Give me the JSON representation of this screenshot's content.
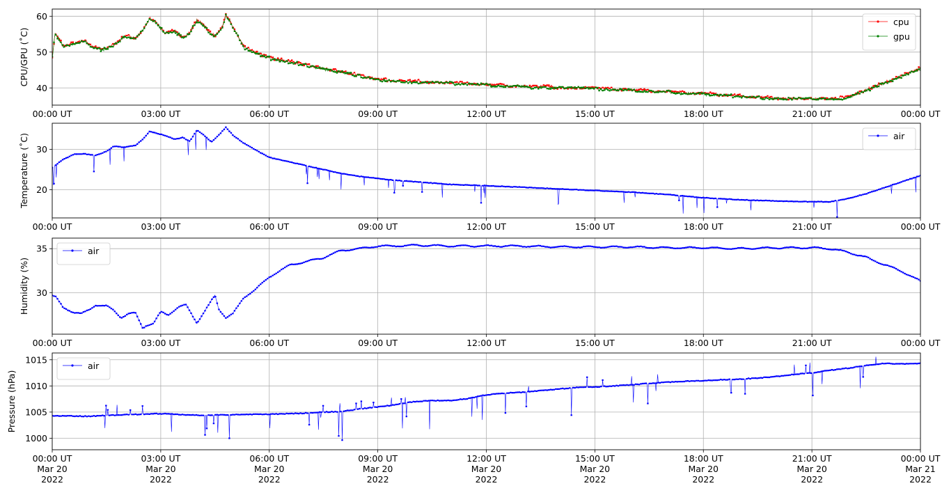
{
  "chart_data": [
    {
      "type": "line",
      "ylabel": "CPU/GPU (˚C)",
      "ylim": [
        35.2,
        62.0
      ],
      "yticks": [
        40,
        50,
        60
      ],
      "xlim_hours": [
        0,
        24
      ],
      "x_tick_labels": [
        "00:00 UT",
        "03:00 UT",
        "06:00 UT",
        "09:00 UT",
        "12:00 UT",
        "15:00 UT",
        "18:00 UT",
        "21:00 UT",
        "00:00 UT"
      ],
      "grid": true,
      "legend": "upper-right",
      "series": [
        {
          "name": "cpu",
          "color": "#ff0000",
          "x": [
            0,
            0.08,
            0.3,
            0.6,
            0.9,
            1.1,
            1.4,
            1.7,
            2.0,
            2.3,
            2.5,
            2.7,
            2.9,
            3.1,
            3.4,
            3.6,
            3.8,
            4.0,
            4.2,
            4.35,
            4.5,
            4.7,
            4.8,
            5.0,
            5.3,
            5.6,
            6.0,
            6.5,
            7.0,
            7.5,
            8.0,
            8.5,
            9.0,
            9.5,
            10.0,
            11.0,
            12.0,
            13.0,
            14.0,
            15.0,
            16.0,
            17.0,
            18.0,
            19.0,
            20.0,
            21.0,
            21.5,
            22.0,
            22.5,
            23.0,
            23.5,
            24.0
          ],
          "y": [
            48.5,
            55.5,
            51.8,
            52.5,
            53.2,
            51.5,
            50.8,
            52.0,
            54.5,
            54.0,
            56.0,
            59.5,
            58.0,
            55.5,
            56.0,
            54.0,
            55.5,
            59.0,
            57.5,
            55.5,
            54.5,
            57.0,
            60.5,
            57.0,
            51.5,
            50.0,
            48.5,
            47.5,
            46.5,
            45.5,
            44.5,
            43.5,
            42.5,
            42.0,
            41.8,
            41.5,
            41.0,
            40.5,
            40.2,
            40.0,
            39.5,
            39.0,
            38.5,
            37.8,
            37.2,
            37.0,
            37.0,
            37.5,
            39.5,
            41.5,
            43.5,
            45.5
          ]
        },
        {
          "name": "gpu",
          "color": "#008000",
          "x": [
            0,
            0.08,
            0.3,
            0.6,
            0.9,
            1.1,
            1.4,
            1.7,
            2.0,
            2.3,
            2.5,
            2.7,
            2.9,
            3.1,
            3.4,
            3.6,
            3.8,
            4.0,
            4.2,
            4.35,
            4.5,
            4.7,
            4.8,
            5.0,
            5.3,
            5.6,
            6.0,
            6.5,
            7.0,
            7.5,
            8.0,
            8.5,
            9.0,
            9.5,
            10.0,
            11.0,
            12.0,
            13.0,
            14.0,
            15.0,
            16.0,
            17.0,
            18.0,
            19.0,
            20.0,
            21.0,
            21.5,
            22.0,
            22.5,
            23.0,
            23.5,
            24.0
          ],
          "y": [
            48.3,
            55.2,
            51.6,
            52.3,
            53.0,
            51.3,
            50.6,
            51.8,
            54.3,
            53.8,
            55.8,
            59.3,
            57.8,
            55.3,
            55.8,
            53.8,
            55.3,
            58.8,
            57.3,
            55.3,
            54.3,
            56.8,
            60.3,
            56.8,
            51.3,
            49.8,
            48.3,
            47.3,
            46.3,
            45.3,
            44.3,
            43.3,
            42.3,
            41.8,
            41.6,
            41.3,
            40.8,
            40.3,
            40.0,
            39.8,
            39.3,
            38.8,
            38.3,
            37.6,
            37.0,
            36.8,
            36.8,
            37.3,
            39.3,
            41.3,
            43.3,
            45.3
          ]
        }
      ]
    },
    {
      "type": "line",
      "ylabel": "Temperature (˚C)",
      "ylim": [
        13.0,
        36.5
      ],
      "yticks": [
        20,
        30
      ],
      "xlim_hours": [
        0,
        24
      ],
      "x_tick_labels": [
        "00:00 UT",
        "03:00 UT",
        "06:00 UT",
        "09:00 UT",
        "12:00 UT",
        "15:00 UT",
        "18:00 UT",
        "21:00 UT",
        "00:00 UT"
      ],
      "grid": true,
      "legend": "upper-right",
      "series": [
        {
          "name": "air",
          "color": "#0000ff",
          "x": [
            0,
            0.3,
            0.6,
            0.9,
            1.2,
            1.5,
            1.7,
            2.0,
            2.3,
            2.5,
            2.7,
            2.9,
            3.1,
            3.4,
            3.6,
            3.8,
            4.0,
            4.2,
            4.4,
            4.6,
            4.8,
            5.0,
            5.3,
            5.6,
            6.0,
            6.5,
            7.0,
            7.5,
            8.0,
            8.5,
            9.0,
            9.5,
            10.0,
            11.0,
            12.0,
            13.0,
            14.0,
            15.0,
            16.0,
            17.0,
            18.0,
            19.0,
            20.0,
            21.0,
            21.5,
            22.0,
            22.5,
            23.0,
            23.5,
            24.0
          ],
          "y": [
            25.5,
            27.5,
            28.8,
            28.9,
            28.5,
            29.5,
            30.8,
            30.5,
            31.0,
            32.5,
            34.5,
            34.0,
            33.5,
            32.5,
            33.0,
            32.0,
            34.8,
            33.5,
            31.8,
            33.5,
            35.5,
            33.5,
            31.5,
            30.0,
            28.0,
            27.0,
            26.0,
            25.0,
            24.0,
            23.3,
            22.8,
            22.3,
            22.0,
            21.3,
            21.0,
            20.6,
            20.2,
            19.8,
            19.4,
            18.8,
            18.0,
            17.5,
            17.2,
            17.0,
            17.0,
            17.8,
            19.0,
            20.5,
            22.0,
            23.5
          ]
        }
      ]
    },
    {
      "type": "line",
      "ylabel": "Humidity (%)",
      "ylim": [
        25.3,
        36.2
      ],
      "yticks": [
        30,
        35
      ],
      "xlim_hours": [
        0,
        24
      ],
      "x_tick_labels": [
        "00:00 UT",
        "03:00 UT",
        "06:00 UT",
        "09:00 UT",
        "12:00 UT",
        "15:00 UT",
        "18:00 UT",
        "21:00 UT",
        "00:00 UT"
      ],
      "grid": true,
      "legend": "upper-left",
      "series": [
        {
          "name": "air",
          "color": "#0000ff",
          "x": [
            0,
            0.1,
            0.3,
            0.6,
            0.8,
            1.0,
            1.2,
            1.5,
            1.7,
            1.9,
            2.1,
            2.3,
            2.5,
            2.6,
            2.8,
            3.0,
            3.2,
            3.5,
            3.7,
            4.0,
            4.2,
            4.5,
            4.6,
            4.8,
            5.0,
            5.3,
            5.6,
            6.0,
            6.3,
            6.6,
            7.0,
            7.5,
            8.0,
            8.5,
            9.0,
            9.5,
            10.0,
            11.0,
            12.0,
            13.0,
            14.0,
            15.0,
            16.0,
            17.0,
            18.0,
            19.0,
            20.0,
            21.0,
            21.5,
            22.0,
            22.5,
            23.0,
            23.5,
            24.0
          ],
          "y": [
            29.7,
            29.5,
            28.3,
            27.8,
            27.6,
            28.0,
            28.6,
            28.5,
            28.0,
            27.2,
            27.6,
            27.7,
            26.0,
            26.3,
            26.5,
            27.8,
            27.5,
            28.4,
            28.6,
            26.6,
            27.8,
            29.7,
            28.2,
            27.2,
            27.6,
            29.5,
            30.3,
            31.8,
            32.5,
            33.2,
            33.5,
            34.0,
            34.8,
            35.0,
            35.3,
            35.3,
            35.4,
            35.3,
            35.3,
            35.3,
            35.2,
            35.2,
            35.2,
            35.1,
            35.1,
            35.0,
            35.1,
            35.1,
            35.0,
            34.6,
            34.0,
            33.2,
            32.4,
            31.3
          ]
        }
      ]
    },
    {
      "type": "line",
      "ylabel": "Pressure (hPa)",
      "ylim": [
        997.8,
        1016.3
      ],
      "yticks": [
        1000,
        1005,
        1010,
        1015
      ],
      "xlim_hours": [
        0,
        24
      ],
      "x_tick_labels": [
        "00:00 UT\nMar 20\n2022",
        "03:00 UT\nMar 20\n2022",
        "06:00 UT\nMar 20\n2022",
        "09:00 UT\nMar 20\n2022",
        "12:00 UT\nMar 20\n2022",
        "15:00 UT\nMar 20\n2022",
        "18:00 UT\nMar 20\n2022",
        "21:00 UT\nMar 20\n2022",
        "00:00 UT\nMar 21\n2022"
      ],
      "grid": true,
      "legend": "upper-left",
      "series": [
        {
          "name": "air",
          "color": "#0000ff",
          "x": [
            0,
            1,
            2,
            3,
            4,
            5,
            6,
            7,
            7.5,
            8.0,
            8.5,
            9.0,
            9.5,
            10.0,
            10.5,
            11.0,
            11.5,
            12.0,
            12.5,
            13.0,
            13.5,
            14.0,
            14.5,
            15.0,
            15.5,
            16.0,
            16.5,
            17.0,
            17.5,
            18.0,
            18.5,
            19.0,
            19.5,
            20.0,
            20.5,
            21.0,
            21.5,
            22.0,
            22.5,
            23.0,
            23.5,
            24.0
          ],
          "y": [
            1004.3,
            1004.2,
            1004.5,
            1004.7,
            1004.4,
            1004.5,
            1004.6,
            1004.8,
            1005.0,
            1005.1,
            1005.6,
            1006.0,
            1006.4,
            1007.0,
            1007.2,
            1007.2,
            1007.6,
            1008.3,
            1008.6,
            1008.8,
            1009.1,
            1009.4,
            1009.7,
            1009.8,
            1010.0,
            1010.2,
            1010.5,
            1010.7,
            1010.9,
            1011.0,
            1011.2,
            1011.3,
            1011.5,
            1011.8,
            1012.2,
            1012.5,
            1013.0,
            1013.4,
            1013.9,
            1014.3,
            1014.2,
            1014.3
          ]
        }
      ]
    }
  ]
}
